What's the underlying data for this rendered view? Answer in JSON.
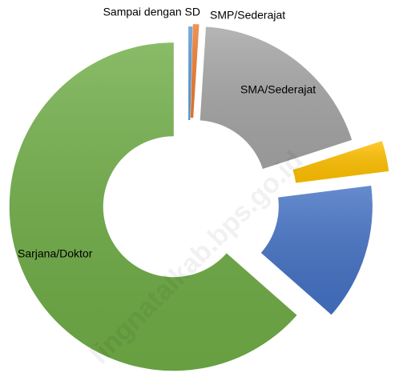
{
  "chart_data": {
    "type": "donut",
    "categories": [
      "Sampai dengan SD",
      "SMP/Sederajat",
      "SMA/Sederajat",
      null,
      null,
      "Sarjana/Doktor"
    ],
    "values": [
      0.4,
      0.6,
      19,
      3,
      13.5,
      63.5
    ],
    "colors": [
      "#5b9bd5",
      "#ed7d31",
      "#a5a5a5",
      "#ffc000",
      "#4472c4",
      "#70ad47"
    ],
    "watermark": "lingnatalkab.bps.go.id"
  }
}
